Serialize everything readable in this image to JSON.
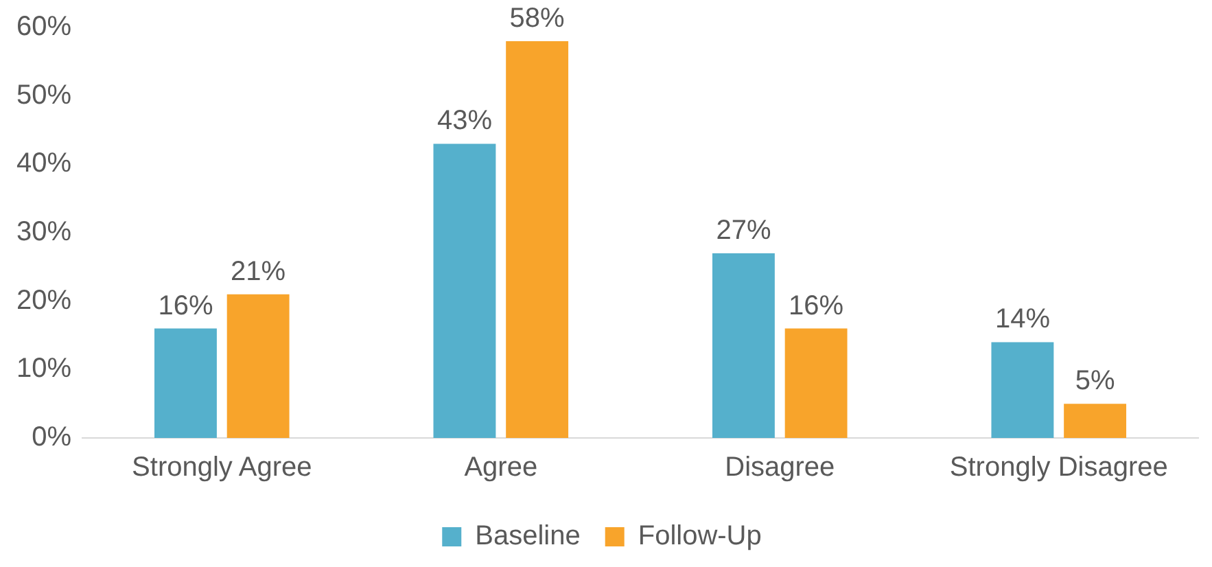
{
  "chart_data": {
    "type": "bar",
    "categories": [
      "Strongly Agree",
      "Agree",
      "Disagree",
      "Strongly Disagree"
    ],
    "series": [
      {
        "name": "Baseline",
        "color": "#55b0cc",
        "values": [
          16,
          43,
          27,
          14
        ],
        "value_labels": [
          "16%",
          "43%",
          "27%",
          "14%"
        ]
      },
      {
        "name": "Follow-Up",
        "color": "#f8a42b",
        "values": [
          21,
          58,
          16,
          5
        ],
        "value_labels": [
          "21%",
          "58%",
          "16%",
          "5%"
        ]
      }
    ],
    "ylim": [
      0,
      60
    ],
    "yticks": [
      {
        "value": 0,
        "label": "0%"
      },
      {
        "value": 10,
        "label": "10%"
      },
      {
        "value": 20,
        "label": "20%"
      },
      {
        "value": 30,
        "label": "30%"
      },
      {
        "value": 40,
        "label": "40%"
      },
      {
        "value": 50,
        "label": "50%"
      },
      {
        "value": 60,
        "label": "60%"
      }
    ],
    "grid": false,
    "legend": "bottom"
  }
}
